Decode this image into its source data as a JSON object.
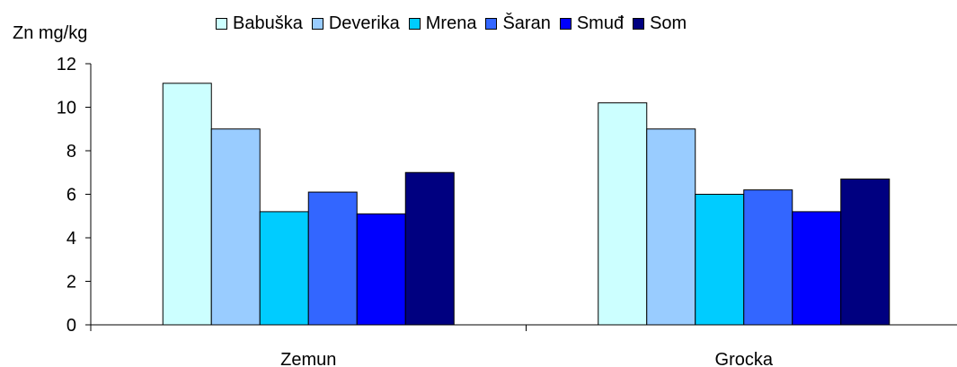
{
  "chart_data": {
    "type": "bar",
    "ylabel": "Zn mg/kg",
    "xlabel": "",
    "ylim": [
      0,
      12
    ],
    "yticks": [
      0,
      2,
      4,
      6,
      8,
      10,
      12
    ],
    "categories": [
      "Zemun",
      "Grocka"
    ],
    "legend_position": "top",
    "grid": false,
    "series": [
      {
        "name": "Babuška",
        "color": "#ccffff",
        "values": [
          11.1,
          10.2
        ]
      },
      {
        "name": "Deverika",
        "color": "#99ccff",
        "values": [
          9.0,
          9.0
        ]
      },
      {
        "name": "Mrena",
        "color": "#00ccff",
        "values": [
          5.2,
          6.0
        ]
      },
      {
        "name": "Šaran",
        "color": "#3366ff",
        "values": [
          6.1,
          6.2
        ]
      },
      {
        "name": "Smuđ",
        "color": "#0000ff",
        "values": [
          5.1,
          5.2
        ]
      },
      {
        "name": "Som",
        "color": "#000080",
        "values": [
          7.0,
          6.7
        ]
      }
    ]
  }
}
